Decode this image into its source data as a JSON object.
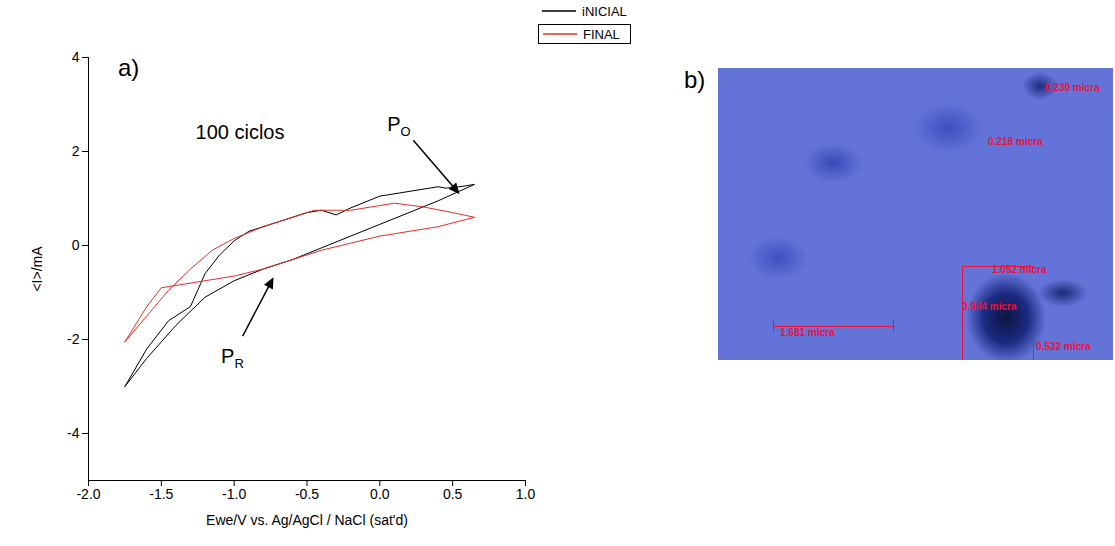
{
  "chart_data": {
    "type": "line",
    "panel_label": "a)",
    "x_label": "Ewe/V vs. Ag/AgCl / NaCl (sat'd)",
    "y_label": "<I>/mA",
    "xlim": [
      -2,
      1
    ],
    "xticks": [
      {
        "value": -2,
        "label": "-2.0"
      },
      {
        "value": -1.5,
        "label": "-1.5"
      },
      {
        "value": -1,
        "label": "-1.0"
      },
      {
        "value": -0.5,
        "label": "-0.5"
      },
      {
        "value": 0,
        "label": "0.0"
      },
      {
        "value": 0.5,
        "label": "0.5"
      },
      {
        "value": 1,
        "label": "1.0"
      }
    ],
    "ylim": [
      -5,
      4
    ],
    "yticks": [
      -4,
      -2,
      0,
      2,
      4
    ],
    "legend": "top-right",
    "series": [
      {
        "name": "iNICIAL",
        "color": "#000000",
        "x": [
          -1.75,
          -1.6,
          -1.45,
          -1.3,
          -1.2,
          -1.1,
          -1.0,
          -0.9,
          -0.7,
          -0.5,
          -0.4,
          -0.3,
          -0.2,
          0.0,
          0.2,
          0.4,
          0.45,
          0.55,
          0.65,
          0.4,
          0.2,
          0.0,
          -0.2,
          -0.4,
          -0.6,
          -0.8,
          -1.0,
          -1.2,
          -1.4,
          -1.6,
          -1.75
        ],
        "values": [
          -3.0,
          -2.2,
          -1.6,
          -1.3,
          -0.6,
          -0.2,
          0.1,
          0.3,
          0.5,
          0.7,
          0.75,
          0.65,
          0.8,
          1.05,
          1.15,
          1.25,
          1.22,
          1.25,
          1.3,
          0.95,
          0.7,
          0.45,
          0.2,
          -0.05,
          -0.3,
          -0.5,
          -0.75,
          -1.1,
          -1.7,
          -2.4,
          -3.0
        ]
      },
      {
        "name": "FINAL",
        "color": "#e0302a",
        "x": [
          -1.75,
          -1.6,
          -1.45,
          -1.3,
          -1.15,
          -1.0,
          -0.8,
          -0.6,
          -0.45,
          -0.35,
          -0.2,
          0.0,
          0.1,
          0.3,
          0.5,
          0.65,
          0.4,
          0.2,
          0.0,
          -0.2,
          -0.4,
          -0.6,
          -0.8,
          -1.0,
          -1.2,
          -1.4,
          -1.5,
          -1.6,
          -1.75
        ],
        "values": [
          -2.05,
          -1.5,
          -0.95,
          -0.5,
          -0.1,
          0.15,
          0.4,
          0.6,
          0.75,
          0.75,
          0.75,
          0.85,
          0.9,
          0.82,
          0.7,
          0.6,
          0.4,
          0.3,
          0.2,
          0.05,
          -0.1,
          -0.3,
          -0.5,
          -0.65,
          -0.75,
          -0.85,
          -0.9,
          -1.3,
          -2.05
        ]
      }
    ],
    "annotations": [
      {
        "text": "100 ciclos",
        "x": -0.96,
        "y": 2.4
      }
    ],
    "callouts": [
      {
        "text": "PO",
        "x": 0.56,
        "y": 1.05
      },
      {
        "text": "PR",
        "x": -0.72,
        "y": -0.65
      }
    ]
  },
  "image_panel": {
    "panel_label": "b)",
    "annotations": [
      "0.230 micra",
      "0.218 micra",
      "1.052 micra",
      "0.944 micra",
      "1.681 micra",
      "0.532 micra"
    ]
  }
}
